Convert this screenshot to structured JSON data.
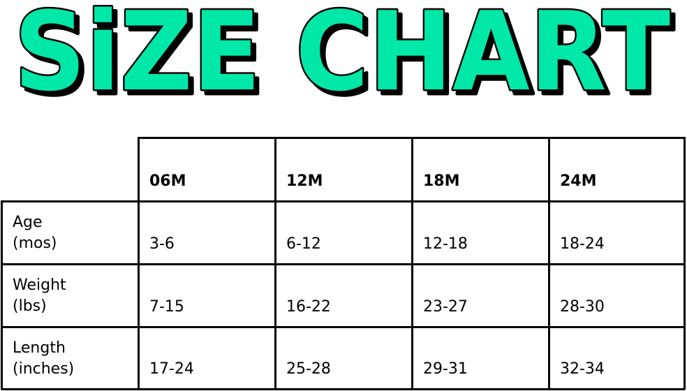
{
  "title": "SiZE CHART",
  "colors": {
    "title_fill": "#00E8A8",
    "title_outline": "#000000",
    "grid": "#000000"
  },
  "table": {
    "columns": [
      "06M",
      "12M",
      "18M",
      "24M"
    ],
    "rows": [
      {
        "label_line1": "Age",
        "label_line2": "(mos)",
        "values": [
          "3-6",
          "6-12",
          "12-18",
          "18-24"
        ]
      },
      {
        "label_line1": "Weight",
        "label_line2": "(lbs)",
        "values": [
          "7-15",
          "16-22",
          "23-27",
          "28-30"
        ]
      },
      {
        "label_line1": "Length",
        "label_line2": "(inches)",
        "values": [
          "17-24",
          "25-28",
          "29-31",
          "32-34"
        ]
      }
    ]
  }
}
